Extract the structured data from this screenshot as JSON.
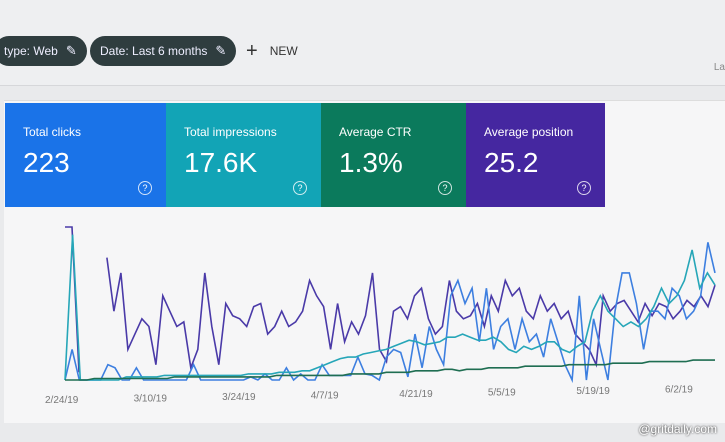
{
  "filters": [
    {
      "label": "type: Web",
      "icon": "pencil-icon"
    },
    {
      "label": "Date: Last 6 months",
      "icon": "pencil-icon"
    }
  ],
  "new_button": {
    "label": "NEW",
    "icon": "plus-icon"
  },
  "right_label": "La",
  "cards": [
    {
      "label": "Total clicks",
      "value": "223",
      "color": "#1a73e8"
    },
    {
      "label": "Total impressions",
      "value": "17.6K",
      "color": "#12a4b6"
    },
    {
      "label": "Average CTR",
      "value": "1.3%",
      "color": "#0b7a5c"
    },
    {
      "label": "Average position",
      "value": "25.2",
      "color": "#4527a0"
    }
  ],
  "chart_data": {
    "type": "line",
    "x_ticks": [
      "2/24/19",
      "3/10/19",
      "3/24/19",
      "4/7/19",
      "4/21/19",
      "5/5/19",
      "5/19/19",
      "6/2/19"
    ],
    "grid": false,
    "series": [
      {
        "color": "#4a3aa8",
        "values": [
          100,
          100,
          5,
          null,
          null,
          null,
          80,
          45,
          70,
          20,
          30,
          40,
          35,
          10,
          55,
          45,
          35,
          38,
          8,
          20,
          70,
          35,
          10,
          50,
          42,
          40,
          35,
          48,
          50,
          30,
          35,
          45,
          35,
          38,
          45,
          65,
          55,
          48,
          20,
          50,
          25,
          38,
          30,
          42,
          70,
          20,
          12,
          45,
          48,
          40,
          55,
          60,
          40,
          30,
          35,
          65,
          45,
          40,
          42,
          50,
          35,
          55,
          45,
          65,
          55,
          60,
          45,
          40,
          55,
          45,
          50,
          40,
          45,
          30,
          25,
          20,
          10,
          55,
          45,
          50,
          52,
          45,
          38,
          50,
          42,
          50,
          48,
          40,
          45,
          52,
          48,
          55,
          48,
          62
        ]
      },
      {
        "color": "#3d7fe0",
        "values": [
          0,
          20,
          0,
          0,
          0,
          0,
          10,
          8,
          0,
          0,
          8,
          0,
          0,
          0,
          0,
          0,
          0,
          0,
          10,
          0,
          0,
          0,
          0,
          0,
          0,
          0,
          2,
          0,
          4,
          0,
          0,
          8,
          0,
          4,
          0,
          0,
          10,
          3,
          3,
          3,
          3,
          15,
          4,
          3,
          0,
          15,
          20,
          18,
          2,
          30,
          8,
          35,
          20,
          10,
          55,
          65,
          50,
          60,
          25,
          60,
          20,
          35,
          40,
          20,
          40,
          25,
          30,
          15,
          40,
          25,
          10,
          0,
          55,
          0,
          40,
          20,
          0,
          45,
          70,
          70,
          50,
          20,
          45,
          45,
          40,
          60,
          55,
          40,
          45,
          55,
          90,
          70
        ]
      },
      {
        "color": "#26a6b8",
        "values": [
          0,
          95,
          0,
          0,
          0,
          0,
          0,
          0,
          2,
          2,
          2,
          2,
          2,
          3,
          3,
          3,
          3,
          3,
          3,
          3,
          3,
          3,
          3,
          3,
          4,
          4,
          4,
          4,
          5,
          5,
          5,
          6,
          6,
          8,
          10,
          12,
          14,
          15,
          15,
          17,
          18,
          19,
          20,
          22,
          24,
          26,
          25,
          23,
          24,
          25,
          28,
          28,
          30,
          28,
          26,
          26,
          28,
          25,
          20,
          18,
          22,
          20,
          22,
          25,
          25,
          20,
          18,
          22,
          25,
          45,
          55,
          45,
          40,
          35,
          38,
          35,
          40,
          48,
          60,
          50,
          55,
          65,
          85,
          60,
          70,
          62
        ]
      },
      {
        "color": "#1f6e52",
        "values": [
          0,
          0,
          0,
          0,
          1,
          1,
          1,
          1,
          1,
          1,
          1,
          1,
          1,
          1,
          1,
          2,
          2,
          2,
          2,
          2,
          2,
          2,
          2,
          2,
          2,
          2,
          2,
          2,
          2,
          3,
          3,
          3,
          3,
          3,
          3,
          3,
          3,
          3,
          3,
          4,
          4,
          4,
          4,
          4,
          5,
          5,
          5,
          5,
          6,
          6,
          6,
          6,
          7,
          7,
          6,
          7,
          7,
          7,
          8,
          8,
          8,
          8,
          8,
          9,
          9,
          9,
          9,
          9,
          9,
          10,
          10,
          10,
          10,
          10,
          10,
          11,
          11,
          11,
          11,
          11,
          12,
          12,
          12,
          12,
          12,
          12,
          13,
          13,
          13,
          13
        ]
      }
    ]
  },
  "watermark": "@gritdaily.com"
}
